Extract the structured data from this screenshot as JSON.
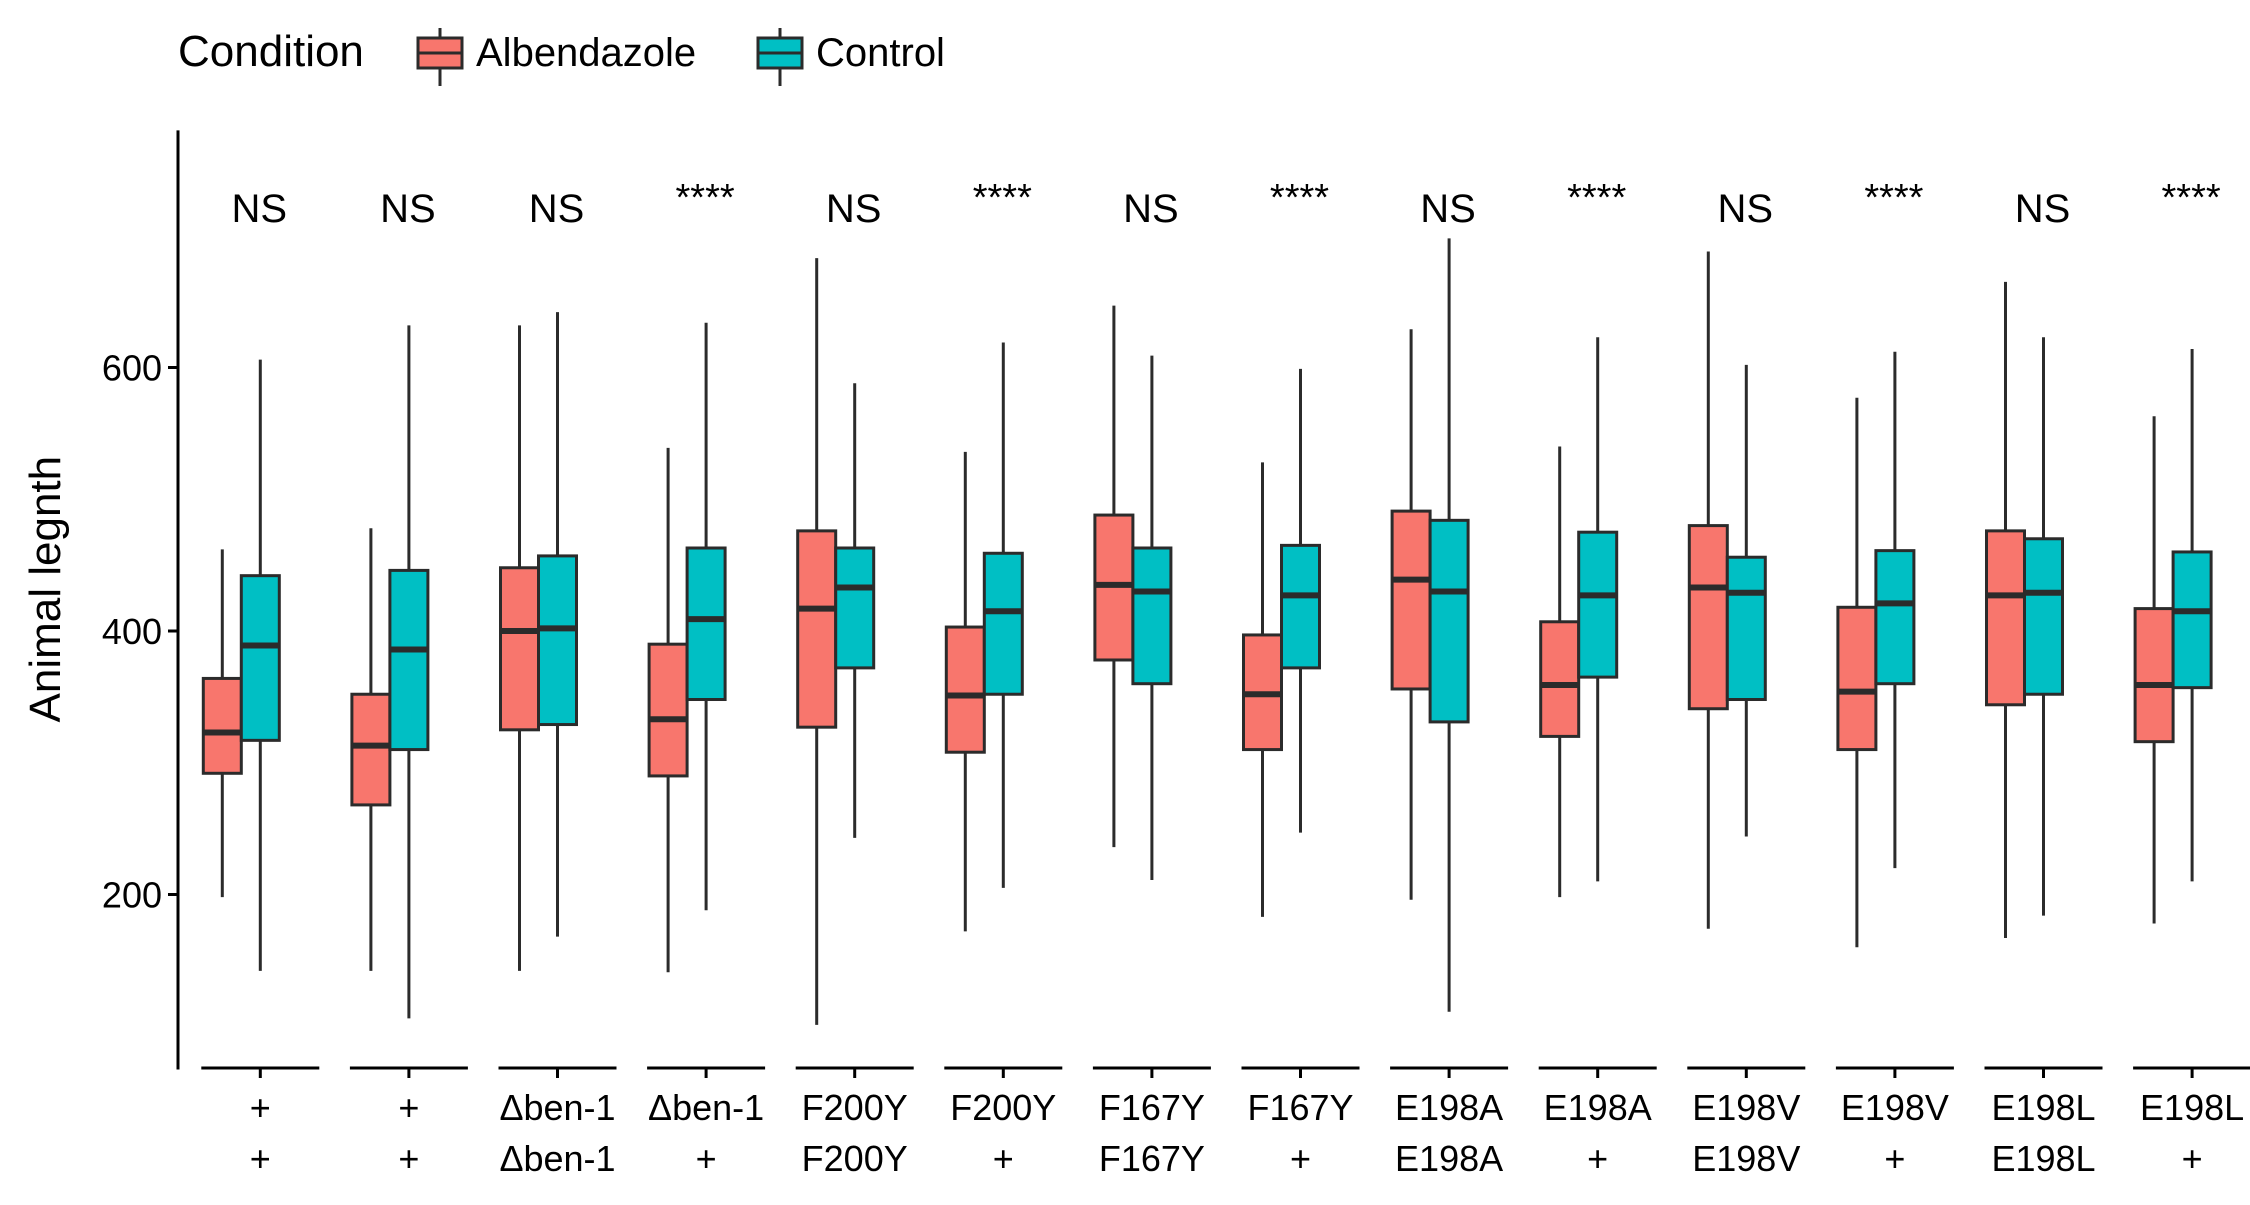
{
  "chart_data": {
    "type": "boxplot",
    "ylabel": "Animal legnth",
    "ylim": [
      70,
      780
    ],
    "yticks": [
      200,
      400,
      600
    ],
    "grid": false,
    "legend": {
      "title": "Condition",
      "placement": "top-left",
      "entries": [
        {
          "name": "Albendazole",
          "color": "#F8766D"
        },
        {
          "name": "Control",
          "color": "#00BFC4"
        }
      ]
    },
    "groups": [
      {
        "label": [
          "+",
          "+"
        ],
        "significance": "NS",
        "boxes": {
          "Albendazole": {
            "min": 198,
            "q1": 292,
            "median": 323,
            "q3": 364,
            "max": 462
          },
          "Control": {
            "min": 142,
            "q1": 317,
            "median": 389,
            "q3": 442,
            "max": 606
          }
        }
      },
      {
        "label": [
          "+",
          "+"
        ],
        "significance": "NS",
        "boxes": {
          "Albendazole": {
            "min": 142,
            "q1": 268,
            "median": 313,
            "q3": 352,
            "max": 478
          },
          "Control": {
            "min": 106,
            "q1": 310,
            "median": 386,
            "q3": 446,
            "max": 632
          }
        }
      },
      {
        "label": [
          "Δben-1",
          "Δben-1"
        ],
        "significance": "NS",
        "boxes": {
          "Albendazole": {
            "min": 142,
            "q1": 325,
            "median": 400,
            "q3": 448,
            "max": 632
          },
          "Control": {
            "min": 168,
            "q1": 329,
            "median": 402,
            "q3": 457,
            "max": 642
          }
        }
      },
      {
        "label": [
          "Δben-1",
          "+"
        ],
        "significance": "****",
        "boxes": {
          "Albendazole": {
            "min": 141,
            "q1": 290,
            "median": 333,
            "q3": 390,
            "max": 539
          },
          "Control": {
            "min": 188,
            "q1": 348,
            "median": 409,
            "q3": 463,
            "max": 634
          }
        }
      },
      {
        "label": [
          "F200Y",
          "F200Y"
        ],
        "significance": "NS",
        "boxes": {
          "Albendazole": {
            "min": 101,
            "q1": 327,
            "median": 417,
            "q3": 476,
            "max": 683
          },
          "Control": {
            "min": 243,
            "q1": 372,
            "median": 433,
            "q3": 463,
            "max": 588
          }
        }
      },
      {
        "label": [
          "F200Y",
          "+"
        ],
        "significance": "****",
        "boxes": {
          "Albendazole": {
            "min": 172,
            "q1": 308,
            "median": 351,
            "q3": 403,
            "max": 536
          },
          "Control": {
            "min": 205,
            "q1": 352,
            "median": 415,
            "q3": 459,
            "max": 619
          }
        }
      },
      {
        "label": [
          "F167Y",
          "F167Y"
        ],
        "significance": "NS",
        "boxes": {
          "Albendazole": {
            "min": 236,
            "q1": 378,
            "median": 435,
            "q3": 488,
            "max": 647
          },
          "Control": {
            "min": 211,
            "q1": 360,
            "median": 430,
            "q3": 463,
            "max": 609
          }
        }
      },
      {
        "label": [
          "F167Y",
          "+"
        ],
        "significance": "****",
        "boxes": {
          "Albendazole": {
            "min": 183,
            "q1": 310,
            "median": 352,
            "q3": 397,
            "max": 528
          },
          "Control": {
            "min": 247,
            "q1": 372,
            "median": 427,
            "q3": 465,
            "max": 599
          }
        }
      },
      {
        "label": [
          "E198A",
          "E198A"
        ],
        "significance": "NS",
        "boxes": {
          "Albendazole": {
            "min": 196,
            "q1": 356,
            "median": 439,
            "q3": 491,
            "max": 629
          },
          "Control": {
            "min": 111,
            "q1": 331,
            "median": 430,
            "q3": 484,
            "max": 698
          }
        }
      },
      {
        "label": [
          "E198A",
          "+"
        ],
        "significance": "****",
        "boxes": {
          "Albendazole": {
            "min": 198,
            "q1": 320,
            "median": 359,
            "q3": 407,
            "max": 540
          },
          "Control": {
            "min": 210,
            "q1": 365,
            "median": 427,
            "q3": 475,
            "max": 623
          }
        }
      },
      {
        "label": [
          "E198V",
          "E198V"
        ],
        "significance": "NS",
        "boxes": {
          "Albendazole": {
            "min": 174,
            "q1": 341,
            "median": 433,
            "q3": 480,
            "max": 688
          },
          "Control": {
            "min": 244,
            "q1": 348,
            "median": 429,
            "q3": 456,
            "max": 602
          }
        }
      },
      {
        "label": [
          "E198V",
          "+"
        ],
        "significance": "****",
        "boxes": {
          "Albendazole": {
            "min": 160,
            "q1": 310,
            "median": 354,
            "q3": 418,
            "max": 577
          },
          "Control": {
            "min": 220,
            "q1": 360,
            "median": 421,
            "q3": 461,
            "max": 612
          }
        }
      },
      {
        "label": [
          "E198L",
          "E198L"
        ],
        "significance": "NS",
        "boxes": {
          "Albendazole": {
            "min": 167,
            "q1": 344,
            "median": 427,
            "q3": 476,
            "max": 665
          },
          "Control": {
            "min": 184,
            "q1": 352,
            "median": 429,
            "q3": 470,
            "max": 623
          }
        }
      },
      {
        "label": [
          "E198L",
          "+"
        ],
        "significance": "****",
        "boxes": {
          "Albendazole": {
            "min": 178,
            "q1": 316,
            "median": 359,
            "q3": 417,
            "max": 563
          },
          "Control": {
            "min": 210,
            "q1": 357,
            "median": 415,
            "q3": 460,
            "max": 614
          }
        }
      }
    ]
  }
}
